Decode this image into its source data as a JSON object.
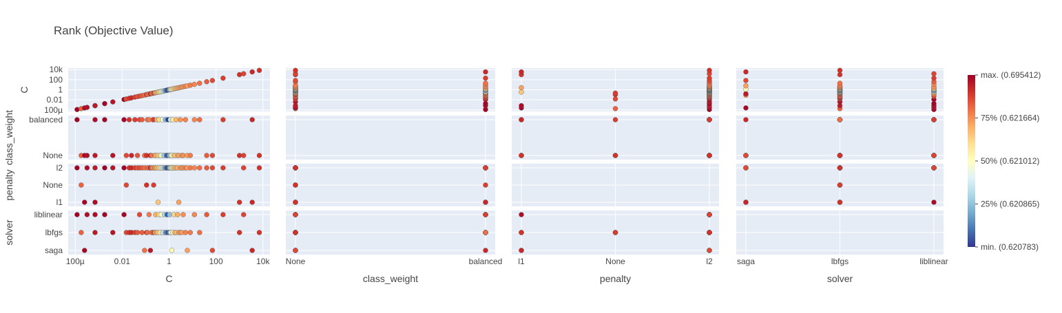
{
  "chart_data": {
    "type": "scatter",
    "title": "Rank (Objective Value)",
    "dimensions": [
      "C",
      "class_weight",
      "penalty",
      "solver"
    ],
    "axes": {
      "C": {
        "scale": "log",
        "range_log10": [
          -4.3,
          4.3
        ],
        "ticks": [
          {
            "value": 0.0001,
            "label": "100µ"
          },
          {
            "value": 0.01,
            "label": "0.01"
          },
          {
            "value": 1,
            "label": "1"
          },
          {
            "value": 100,
            "label": "100"
          },
          {
            "value": 10000,
            "label": "10k"
          }
        ]
      },
      "class_weight": {
        "scale": "category",
        "categories": [
          "None",
          "balanced"
        ]
      },
      "penalty": {
        "scale": "category",
        "categories": [
          "l1",
          "None",
          "l2"
        ]
      },
      "solver": {
        "scale": "category",
        "categories": [
          "saga",
          "lbfgs",
          "liblinear"
        ]
      }
    },
    "colorbar": {
      "colors": [
        "#313695",
        "#4575b4",
        "#74add1",
        "#abd9e9",
        "#e0f3f8",
        "#ffffbf",
        "#fee090",
        "#fdae61",
        "#f46d43",
        "#d73027",
        "#a50026"
      ],
      "ticks": [
        {
          "frac": 1.0,
          "label": "max. (0.695412)"
        },
        {
          "frac": 0.75,
          "label": "75% (0.621664)"
        },
        {
          "frac": 0.5,
          "label": "50% (0.621012)"
        },
        {
          "frac": 0.25,
          "label": "25% (0.620865)"
        },
        {
          "frac": 0.0,
          "label": "min. (0.620783)"
        }
      ]
    },
    "trials": [
      {
        "C": 0.00012,
        "class_weight": "balanced",
        "penalty": "l2",
        "solver": "liblinear",
        "rank": 1.0
      },
      {
        "C": 0.00018,
        "class_weight": "None",
        "penalty": "None",
        "solver": "lbfgs",
        "rank": 0.82
      },
      {
        "C": 0.00025,
        "class_weight": "None",
        "penalty": "l1",
        "solver": "saga",
        "rank": 0.99
      },
      {
        "C": 0.00032,
        "class_weight": "None",
        "penalty": "l2",
        "solver": "liblinear",
        "rank": 0.97
      },
      {
        "C": 0.0007,
        "class_weight": "balanced",
        "penalty": "l1",
        "solver": "liblinear",
        "rank": 0.98
      },
      {
        "C": 0.0007,
        "class_weight": "None",
        "penalty": "l2",
        "solver": "lbfgs",
        "rank": 0.95
      },
      {
        "C": 0.0018,
        "class_weight": "balanced",
        "penalty": "l2",
        "solver": "liblinear",
        "rank": 1.0
      },
      {
        "C": 0.004,
        "class_weight": "None",
        "penalty": "l2",
        "solver": "lbfgs",
        "rank": 0.96
      },
      {
        "C": 0.012,
        "class_weight": "balanced",
        "penalty": "l2",
        "solver": "liblinear",
        "rank": 0.99
      },
      {
        "C": 0.015,
        "class_weight": "None",
        "penalty": "None",
        "solver": "lbfgs",
        "rank": 0.86
      },
      {
        "C": 0.02,
        "class_weight": "balanced",
        "penalty": "l2",
        "solver": "lbfgs",
        "rank": 0.9
      },
      {
        "C": 0.025,
        "class_weight": "None",
        "penalty": "l2",
        "solver": "lbfgs",
        "rank": 0.92
      },
      {
        "C": 0.035,
        "class_weight": "balanced",
        "penalty": "l2",
        "solver": "lbfgs",
        "rank": 0.88
      },
      {
        "C": 0.045,
        "class_weight": "None",
        "penalty": "l2",
        "solver": "lbfgs",
        "rank": 0.84
      },
      {
        "C": 0.055,
        "class_weight": "balanced",
        "penalty": "l2",
        "solver": "liblinear",
        "rank": 0.86
      },
      {
        "C": 0.07,
        "class_weight": "balanced",
        "penalty": "l2",
        "solver": "lbfgs",
        "rank": 0.83
      },
      {
        "C": 0.09,
        "class_weight": "None",
        "penalty": "l2",
        "solver": "saga",
        "rank": 0.8
      },
      {
        "C": 0.11,
        "class_weight": "None",
        "penalty": "None",
        "solver": "lbfgs",
        "rank": 0.9
      },
      {
        "C": 0.12,
        "class_weight": "balanced",
        "penalty": "l2",
        "solver": "lbfgs",
        "rank": 0.81
      },
      {
        "C": 0.14,
        "class_weight": "balanced",
        "penalty": "l2",
        "solver": "liblinear",
        "rank": 0.78
      },
      {
        "C": 0.16,
        "class_weight": "None",
        "penalty": "l2",
        "solver": "saga",
        "rank": 0.95
      },
      {
        "C": 0.18,
        "class_weight": "None",
        "penalty": "l2",
        "solver": "lbfgs",
        "rank": 0.79
      },
      {
        "C": 0.2,
        "class_weight": "balanced",
        "penalty": "l2",
        "solver": "lbfgs",
        "rank": 0.76
      },
      {
        "C": 0.22,
        "class_weight": "balanced",
        "penalty": "None",
        "solver": "lbfgs",
        "rank": 0.88
      },
      {
        "C": 0.25,
        "class_weight": "None",
        "penalty": "l2",
        "solver": "lbfgs",
        "rank": 0.73
      },
      {
        "C": 0.27,
        "class_weight": "None",
        "penalty": "l2",
        "solver": "liblinear",
        "rank": 0.7
      },
      {
        "C": 0.3,
        "class_weight": "balanced",
        "penalty": "l2",
        "solver": "lbfgs",
        "rank": 0.69
      },
      {
        "C": 0.34,
        "class_weight": "None",
        "penalty": "l1",
        "solver": "lbfgs",
        "rank": 0.65
      },
      {
        "C": 0.38,
        "class_weight": "balanced",
        "penalty": "l2",
        "solver": "liblinear",
        "rank": 0.6
      },
      {
        "C": 0.42,
        "class_weight": "None",
        "penalty": "l2",
        "solver": "lbfgs",
        "rank": 0.55
      },
      {
        "C": 0.47,
        "class_weight": "None",
        "penalty": "l2",
        "solver": "liblinear",
        "rank": 0.5
      },
      {
        "C": 0.52,
        "class_weight": "balanced",
        "penalty": "l2",
        "solver": "lbfgs",
        "rank": 0.45
      },
      {
        "C": 0.58,
        "class_weight": "None",
        "penalty": "l2",
        "solver": "lbfgs",
        "rank": 0.38
      },
      {
        "C": 0.64,
        "class_weight": "None",
        "penalty": "l2",
        "solver": "liblinear",
        "rank": 0.3
      },
      {
        "C": 0.7,
        "class_weight": "balanced",
        "penalty": "l2",
        "solver": "lbfgs",
        "rank": 0.22
      },
      {
        "C": 0.76,
        "class_weight": "None",
        "penalty": "l2",
        "solver": "lbfgs",
        "rank": 0.14
      },
      {
        "C": 0.82,
        "class_weight": "None",
        "penalty": "l2",
        "solver": "liblinear",
        "rank": 0.06
      },
      {
        "C": 0.9,
        "class_weight": "balanced",
        "penalty": "l2",
        "solver": "lbfgs",
        "rank": 0.0
      },
      {
        "C": 0.98,
        "class_weight": "None",
        "penalty": "l2",
        "solver": "lbfgs",
        "rank": 0.1
      },
      {
        "C": 1.05,
        "class_weight": "None",
        "penalty": "l2",
        "solver": "liblinear",
        "rank": 0.25
      },
      {
        "C": 1.12,
        "class_weight": "balanced",
        "penalty": "l2",
        "solver": "lbfgs",
        "rank": 0.35
      },
      {
        "C": 1.2,
        "class_weight": "None",
        "penalty": "l2",
        "solver": "lbfgs",
        "rank": 0.42
      },
      {
        "C": 1.3,
        "class_weight": "None",
        "penalty": "l2",
        "solver": "saga",
        "rank": 0.52
      },
      {
        "C": 1.45,
        "class_weight": "balanced",
        "penalty": "l2",
        "solver": "lbfgs",
        "rank": 0.57
      },
      {
        "C": 1.6,
        "class_weight": "None",
        "penalty": "l2",
        "solver": "liblinear",
        "rank": 0.62
      },
      {
        "C": 1.8,
        "class_weight": "None",
        "penalty": "l2",
        "solver": "lbfgs",
        "rank": 0.66
      },
      {
        "C": 2.0,
        "class_weight": "balanced",
        "penalty": "l2",
        "solver": "lbfgs",
        "rank": 0.68
      },
      {
        "C": 2.3,
        "class_weight": "None",
        "penalty": "l2",
        "solver": "liblinear",
        "rank": 0.7
      },
      {
        "C": 2.6,
        "class_weight": "None",
        "penalty": "l1",
        "solver": "lbfgs",
        "rank": 0.72
      },
      {
        "C": 3.0,
        "class_weight": "balanced",
        "penalty": "l2",
        "solver": "lbfgs",
        "rank": 0.74
      },
      {
        "C": 3.5,
        "class_weight": "None",
        "penalty": "l2",
        "solver": "lbfgs",
        "rank": 0.73
      },
      {
        "C": 4.0,
        "class_weight": "None",
        "penalty": "l2",
        "solver": "liblinear",
        "rank": 0.75
      },
      {
        "C": 5.0,
        "class_weight": "balanced",
        "penalty": "l2",
        "solver": "lbfgs",
        "rank": 0.77
      },
      {
        "C": 6.0,
        "class_weight": "None",
        "penalty": "l2",
        "solver": "saga",
        "rank": 0.72
      },
      {
        "C": 8.0,
        "class_weight": "None",
        "penalty": "l2",
        "solver": "lbfgs",
        "rank": 0.78
      },
      {
        "C": 12,
        "class_weight": "balanced",
        "penalty": "l2",
        "solver": "liblinear",
        "rank": 0.76
      },
      {
        "C": 20,
        "class_weight": "balanced",
        "penalty": "l2",
        "solver": "lbfgs",
        "rank": 0.8
      },
      {
        "C": 40,
        "class_weight": "None",
        "penalty": "l2",
        "solver": "liblinear",
        "rank": 0.83
      },
      {
        "C": 70,
        "class_weight": "None",
        "penalty": "l2",
        "solver": "saga",
        "rank": 0.86
      },
      {
        "C": 200,
        "class_weight": "balanced",
        "penalty": "l2",
        "solver": "liblinear",
        "rank": 0.88
      },
      {
        "C": 1000,
        "class_weight": "None",
        "penalty": "l1",
        "solver": "lbfgs",
        "rank": 0.9
      },
      {
        "C": 1500,
        "class_weight": "None",
        "penalty": "l2",
        "solver": "liblinear",
        "rank": 0.87
      },
      {
        "C": 3500,
        "class_weight": "balanced",
        "penalty": "l1",
        "solver": "saga",
        "rank": 0.92
      },
      {
        "C": 7000,
        "class_weight": "None",
        "penalty": "l2",
        "solver": "lbfgs",
        "rank": 0.9
      }
    ]
  }
}
